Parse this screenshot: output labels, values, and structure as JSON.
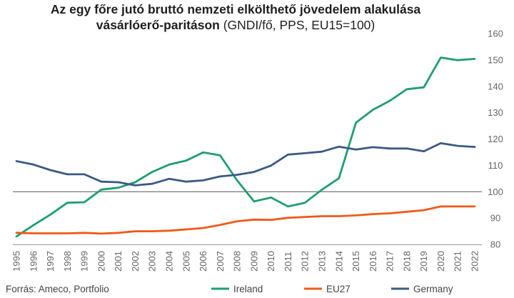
{
  "chart_data": {
    "type": "line",
    "title": "Az egy főre jutó bruttó nemzeti elkölthető jövedelem alakulása",
    "subtitle_bold": "vásárlóerő-paritáson",
    "subtitle_rest": " (GNDI/fő, PPS, EU15=100)",
    "xlabel": "",
    "ylabel": "",
    "ylim": [
      80,
      160
    ],
    "yticks": [
      80,
      90,
      100,
      110,
      120,
      130,
      140,
      150,
      160
    ],
    "reference_line": 100,
    "grid": false,
    "legend_position": "bottom",
    "source": "Forrás: Ameco, Portfolio",
    "x": [
      "1995",
      "1996",
      "1997",
      "1998",
      "1999",
      "2000",
      "2001",
      "2002",
      "2003",
      "2004",
      "2005",
      "2006",
      "2007",
      "2008",
      "2009",
      "2010",
      "2011",
      "2012",
      "2013",
      "2014",
      "2015",
      "2016",
      "2017",
      "2018",
      "2019",
      "2020",
      "2021",
      "2022"
    ],
    "series": [
      {
        "name": "Ireland",
        "color": "#1e9e74",
        "values": [
          83,
          87.3,
          91.3,
          95.8,
          96,
          100.8,
          101.5,
          103.6,
          107.5,
          110.3,
          111.8,
          114.9,
          113.8,
          104.3,
          96.3,
          97.8,
          94.4,
          95.8,
          100.8,
          105.1,
          126.2,
          131.1,
          134.5,
          138.9,
          139.6,
          150.9,
          149.9,
          150.4
        ]
      },
      {
        "name": "EU27",
        "color": "#f05a19",
        "values": [
          84.4,
          84.2,
          84.2,
          84.2,
          84.4,
          84.1,
          84.4,
          85,
          85,
          85.2,
          85.7,
          86.2,
          87.4,
          88.8,
          89.4,
          89.3,
          90.1,
          90.4,
          90.7,
          90.7,
          91,
          91.5,
          91.8,
          92.4,
          93,
          94.4,
          94.4,
          94.4
        ]
      },
      {
        "name": "Germany",
        "color": "#3a5a85",
        "values": [
          111.6,
          110.3,
          108.2,
          106.6,
          106.6,
          103.8,
          103.6,
          102.4,
          103,
          104.9,
          103.8,
          104.3,
          105.8,
          106.4,
          107.5,
          109.9,
          114.1,
          114.6,
          115.2,
          117.1,
          116,
          116.9,
          116.4,
          116.4,
          115.3,
          118.4,
          117.4,
          117
        ]
      }
    ]
  }
}
